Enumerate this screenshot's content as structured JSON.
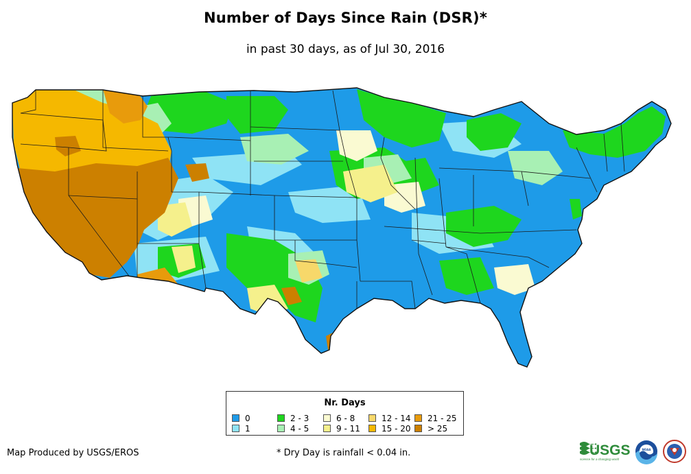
{
  "header": {
    "title": "Number of Days Since Rain (DSR)*",
    "subtitle": "in past 30 days, as of Jul 30, 2016"
  },
  "legend": {
    "title": "Nr. Days",
    "items": [
      {
        "label": "0",
        "color": "#1e9be8"
      },
      {
        "label": "1",
        "color": "#8fe3f5"
      },
      {
        "label": "2 - 3",
        "color": "#1ed61e"
      },
      {
        "label": "4 - 5",
        "color": "#a8f0b4"
      },
      {
        "label": "6 - 8",
        "color": "#fafad2"
      },
      {
        "label": "9 - 11",
        "color": "#f5f08c"
      },
      {
        "label": "12 - 14",
        "color": "#f7d86a"
      },
      {
        "label": "15 - 20",
        "color": "#f5b800"
      },
      {
        "label": "21 - 25",
        "color": "#e89b0c"
      },
      {
        "label": "> 25",
        "color": "#cc8000"
      }
    ]
  },
  "footer": {
    "credit": "Map Produced by USGS/EROS",
    "footnote": "* Dry Day is rainfall < 0.04 in.",
    "usgs_logo": "USGS",
    "usgs_tagline": "science for a changing world",
    "noaa_logo": "NOAA"
  }
}
